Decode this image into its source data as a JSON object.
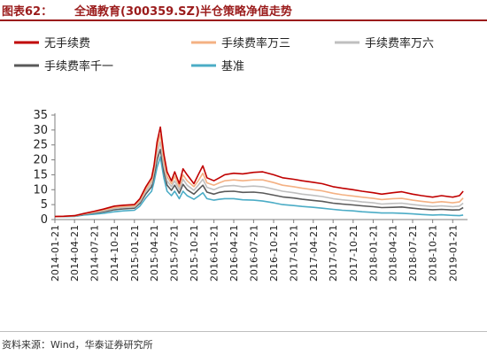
{
  "figure": {
    "number_label": "图表62：",
    "title": "全通教育(300359.SZ)半仓策略净值走势",
    "source": "资料来源：Wind，华泰证券研究所"
  },
  "colors": {
    "no_fee": "#c00000",
    "fee_3": "#f4b183",
    "fee_6": "#bfbfbf",
    "fee_1": "#595959",
    "benchmark": "#4bacc6",
    "title": "#9b1c1c"
  },
  "chart_data": {
    "type": "line",
    "title": "全通教育(300359.SZ)半仓策略净值走势",
    "xlabel": "",
    "ylabel": "",
    "ylim": [
      0,
      35
    ],
    "yticks": [
      0,
      5,
      10,
      15,
      20,
      25,
      30,
      35
    ],
    "x_ticks": [
      "2014-01-21",
      "2014-04-21",
      "2014-07-21",
      "2014-10-21",
      "2015-01-21",
      "2015-04-21",
      "2015-07-21",
      "2015-10-21",
      "2016-01-21",
      "2016-04-21",
      "2016-07-21",
      "2016-10-21",
      "2017-01-21",
      "2017-04-21",
      "2017-07-21",
      "2017-10-21",
      "2018-01-21",
      "2018-04-21",
      "2018-07-21",
      "2018-10-21",
      "2019-01-21"
    ],
    "x": [
      "2014-01-21",
      "2014-03-01",
      "2014-04-21",
      "2014-06-01",
      "2014-07-21",
      "2014-09-01",
      "2014-10-21",
      "2014-12-01",
      "2015-01-21",
      "2015-02-15",
      "2015-03-15",
      "2015-04-10",
      "2015-04-21",
      "2015-05-05",
      "2015-05-20",
      "2015-06-05",
      "2015-06-20",
      "2015-07-10",
      "2015-07-25",
      "2015-08-15",
      "2015-09-01",
      "2015-09-20",
      "2015-10-21",
      "2015-11-10",
      "2015-12-01",
      "2015-12-20",
      "2016-01-21",
      "2016-02-15",
      "2016-03-10",
      "2016-04-21",
      "2016-06-01",
      "2016-07-21",
      "2016-09-01",
      "2016-10-21",
      "2016-12-01",
      "2017-01-21",
      "2017-03-01",
      "2017-04-21",
      "2017-06-01",
      "2017-07-21",
      "2017-09-01",
      "2017-10-21",
      "2017-12-01",
      "2018-01-21",
      "2018-03-01",
      "2018-04-21",
      "2018-06-01",
      "2018-07-21",
      "2018-09-01",
      "2018-10-21",
      "2018-12-01",
      "2019-01-21",
      "2019-02-21",
      "2019-03-10"
    ],
    "series": [
      {
        "name": "无手续费",
        "color": "#c00000",
        "values": [
          1.0,
          1.1,
          1.3,
          2.0,
          2.8,
          3.5,
          4.5,
          4.8,
          5.0,
          7.0,
          11.0,
          14.0,
          18.0,
          26.0,
          31.0,
          22.0,
          16.0,
          13.0,
          16.0,
          12.0,
          17.0,
          15.0,
          12.0,
          15.0,
          18.0,
          14.0,
          13.0,
          14.0,
          15.0,
          15.5,
          15.3,
          15.8,
          16.0,
          15.0,
          14.0,
          13.5,
          13.0,
          12.5,
          12.0,
          11.0,
          10.5,
          10.0,
          9.5,
          9.0,
          8.5,
          9.0,
          9.3,
          8.5,
          8.0,
          7.5,
          8.0,
          7.5,
          8.0,
          9.5
        ]
      },
      {
        "name": "手续费率万三",
        "color": "#f4b183",
        "values": [
          1.0,
          1.1,
          1.25,
          1.9,
          2.6,
          3.2,
          4.1,
          4.4,
          4.6,
          6.5,
          10.2,
          13.0,
          17.0,
          24.0,
          28.5,
          20.0,
          14.5,
          12.0,
          14.5,
          11.0,
          15.0,
          13.0,
          11.0,
          13.0,
          15.5,
          12.3,
          11.5,
          12.3,
          13.0,
          13.3,
          13.0,
          13.3,
          13.3,
          12.4,
          11.5,
          11.0,
          10.5,
          10.0,
          9.6,
          8.8,
          8.3,
          7.9,
          7.5,
          7.1,
          6.7,
          7.0,
          7.1,
          6.5,
          6.1,
          5.7,
          6.0,
          5.6,
          5.9,
          7.2
        ]
      },
      {
        "name": "手续费率万六",
        "color": "#bfbfbf",
        "values": [
          1.0,
          1.05,
          1.2,
          1.8,
          2.4,
          2.9,
          3.7,
          4.0,
          4.2,
          6.0,
          9.5,
          12.0,
          16.0,
          22.0,
          26.0,
          18.0,
          13.0,
          11.0,
          13.0,
          10.0,
          13.5,
          11.5,
          9.8,
          11.5,
          13.5,
          10.8,
          10.0,
          10.8,
          11.2,
          11.4,
          11.0,
          11.2,
          11.0,
          10.2,
          9.5,
          9.0,
          8.5,
          8.1,
          7.7,
          7.0,
          6.6,
          6.3,
          5.9,
          5.6,
          5.2,
          5.4,
          5.5,
          5.0,
          4.7,
          4.4,
          4.6,
          4.3,
          4.5,
          5.5
        ]
      },
      {
        "name": "手续费率千一",
        "color": "#595959",
        "values": [
          1.0,
          1.05,
          1.15,
          1.7,
          2.2,
          2.6,
          3.3,
          3.6,
          3.8,
          5.4,
          8.6,
          11.0,
          14.5,
          20.0,
          23.5,
          16.2,
          11.5,
          9.8,
          11.5,
          8.8,
          11.8,
          10.0,
          8.5,
          10.0,
          11.5,
          9.2,
          8.5,
          9.1,
          9.4,
          9.5,
          9.1,
          9.2,
          8.9,
          8.2,
          7.6,
          7.2,
          6.8,
          6.4,
          6.1,
          5.5,
          5.2,
          4.9,
          4.6,
          4.3,
          4.0,
          4.1,
          4.2,
          3.8,
          3.5,
          3.3,
          3.4,
          3.2,
          3.3,
          4.0
        ]
      },
      {
        "name": "基准",
        "color": "#4bacc6",
        "values": [
          1.0,
          1.0,
          1.05,
          1.5,
          1.8,
          2.1,
          2.6,
          2.9,
          3.1,
          4.5,
          7.3,
          9.5,
          12.5,
          17.5,
          21.0,
          14.0,
          9.5,
          8.0,
          9.5,
          7.0,
          9.5,
          8.0,
          6.8,
          7.8,
          9.0,
          7.0,
          6.5,
          6.8,
          7.0,
          7.0,
          6.6,
          6.5,
          6.2,
          5.6,
          5.0,
          4.7,
          4.4,
          4.1,
          3.8,
          3.4,
          3.1,
          2.9,
          2.6,
          2.4,
          2.2,
          2.2,
          2.1,
          1.9,
          1.7,
          1.5,
          1.6,
          1.4,
          1.3,
          1.5
        ]
      }
    ],
    "legend": [
      "无手续费",
      "手续费率万三",
      "手续费率万六",
      "手续费率千一",
      "基准"
    ],
    "legend_position": "top",
    "grid": false
  }
}
